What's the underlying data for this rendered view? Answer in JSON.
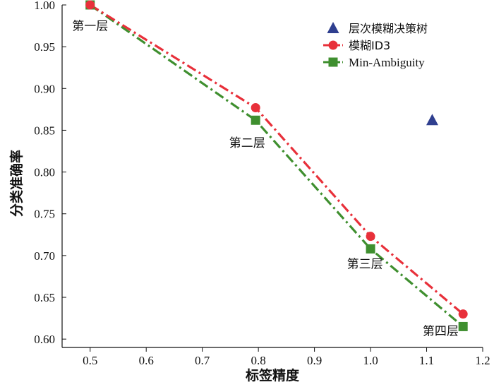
{
  "chart_data": {
    "type": "line",
    "xlabel": "标签精度",
    "ylabel": "分类准确率",
    "xlim": [
      0.45,
      1.2
    ],
    "ylim": [
      0.59,
      1.0
    ],
    "xticks": [
      0.5,
      0.6,
      0.7,
      0.8,
      0.9,
      1.0,
      1.1,
      1.2
    ],
    "yticks": [
      0.6,
      0.65,
      0.7,
      0.75,
      0.8,
      0.85,
      0.9,
      0.95,
      1.0
    ],
    "xtick_labels": [
      "0.5",
      "0.6",
      "0.7",
      "0.8",
      "0.9",
      "1.0",
      "1.1",
      "1.2"
    ],
    "ytick_labels": [
      "0.60",
      "0.65",
      "0.70",
      "0.75",
      "0.80",
      "0.85",
      "0.90",
      "0.95",
      "1.00"
    ],
    "legend_position": "top-right",
    "grid": false,
    "series": [
      {
        "name": "层次模糊决策树",
        "marker": "triangle",
        "color": "#2f3f8f",
        "line": "none",
        "points": [
          [
            1.11,
            0.862
          ]
        ]
      },
      {
        "name": "模糊ID3",
        "marker": "circle",
        "color": "#e8303a",
        "line": "dashdot",
        "points": [
          [
            0.5,
            1.0
          ],
          [
            0.795,
            0.877
          ],
          [
            1.0,
            0.723
          ],
          [
            1.165,
            0.63
          ]
        ]
      },
      {
        "name": "Min-Ambiguity",
        "marker": "square",
        "color": "#3f8f2f",
        "line": "dashdot",
        "points": [
          [
            0.5,
            1.0
          ],
          [
            0.795,
            0.862
          ],
          [
            1.0,
            0.708
          ],
          [
            1.165,
            0.615
          ]
        ]
      }
    ],
    "annotations": [
      {
        "text": "第一层",
        "x": 0.5,
        "y": 0.97
      },
      {
        "text": "第二层",
        "x": 0.78,
        "y": 0.83
      },
      {
        "text": "第三层",
        "x": 0.99,
        "y": 0.685
      },
      {
        "text": "第四层",
        "x": 1.125,
        "y": 0.605
      }
    ]
  }
}
